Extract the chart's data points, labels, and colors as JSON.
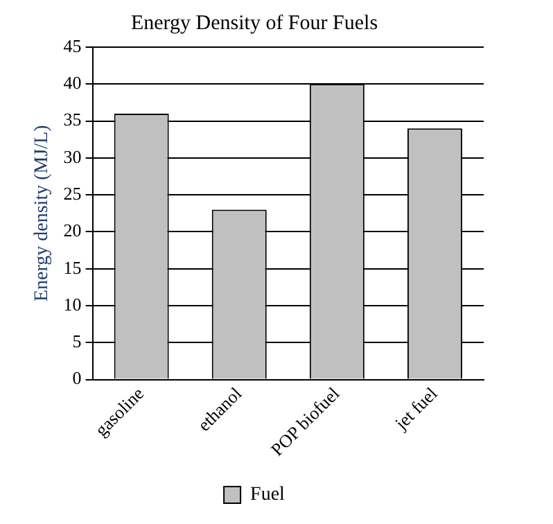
{
  "chart_data": {
    "type": "bar",
    "title": "Energy Density of Four Fuels",
    "ylabel": "Energy density (MJ/L)",
    "categories": [
      "gasoline",
      "ethanol",
      "POP biofuel",
      "jet fuel"
    ],
    "series": [
      {
        "name": "Fuel",
        "color": "#c0c0c0",
        "values": [
          36,
          23,
          40,
          34
        ]
      }
    ],
    "ylim": [
      0,
      45
    ],
    "yticks": [
      0,
      5,
      10,
      15,
      20,
      25,
      30,
      35,
      40,
      45
    ],
    "grid": "y",
    "legend": "bottom"
  }
}
